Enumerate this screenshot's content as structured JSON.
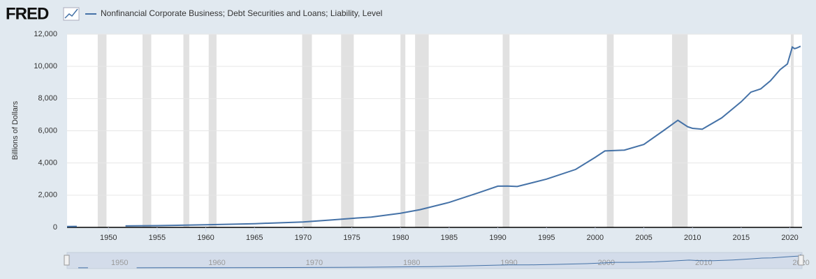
{
  "logo": "FRED",
  "chart_data": {
    "type": "line",
    "y_label": "Billions of Dollars",
    "x": [
      1945.75,
      1946.75,
      1949,
      1951.75,
      1955,
      1960,
      1965,
      1970,
      1973,
      1975,
      1977,
      1980,
      1982,
      1985,
      1988,
      1990,
      1991,
      1992,
      1995,
      1998,
      2000,
      2001,
      2003,
      2005,
      2007,
      2008.5,
      2009.5,
      2010,
      2011,
      2013,
      2015,
      2016,
      2017,
      2018,
      2019,
      2019.75,
      2020.25,
      2020.5,
      2020.75,
      2021.1
    ],
    "series": [
      {
        "name": "Nonfinancial Corporate Business; Debt Securities and Loans; Liability, Level",
        "color": "#4572a7",
        "values": [
          50,
          60,
          null,
          90,
          110,
          160,
          230,
          340,
          470,
          560,
          640,
          880,
          1100,
          1550,
          2150,
          2560,
          2570,
          2540,
          3000,
          3600,
          4350,
          4750,
          4800,
          5150,
          6000,
          6650,
          6250,
          6150,
          6100,
          6800,
          7800,
          8400,
          8600,
          9100,
          9800,
          10150,
          11200,
          11100,
          11150,
          11250
        ]
      }
    ],
    "recessions": [
      [
        1948.9,
        1949.8
      ],
      [
        1953.5,
        1954.4
      ],
      [
        1957.7,
        1958.3
      ],
      [
        1960.3,
        1961.1
      ],
      [
        1969.9,
        1970.9
      ],
      [
        1973.9,
        1975.2
      ],
      [
        1980.0,
        1980.5
      ],
      [
        1981.5,
        1982.9
      ],
      [
        1990.5,
        1991.2
      ],
      [
        2001.2,
        2001.9
      ],
      [
        2007.9,
        2009.5
      ],
      [
        2020.1,
        2020.4
      ]
    ],
    "xlim": [
      1945.75,
      2021.25
    ],
    "xticks": [
      1950,
      1955,
      1960,
      1965,
      1970,
      1975,
      1980,
      1985,
      1990,
      1995,
      2000,
      2005,
      2010,
      2015,
      2020
    ],
    "ylim": [
      0,
      12000
    ],
    "yticks": [
      0,
      {
        "value": 2000,
        "label": "2,000"
      },
      {
        "value": 4000,
        "label": "4,000"
      },
      {
        "value": 6000,
        "label": "6,000"
      },
      {
        "value": 8000,
        "label": "8,000"
      },
      {
        "value": 10000,
        "label": "10,000"
      },
      {
        "value": 12000,
        "label": "12,000"
      }
    ],
    "grid": true
  }
}
